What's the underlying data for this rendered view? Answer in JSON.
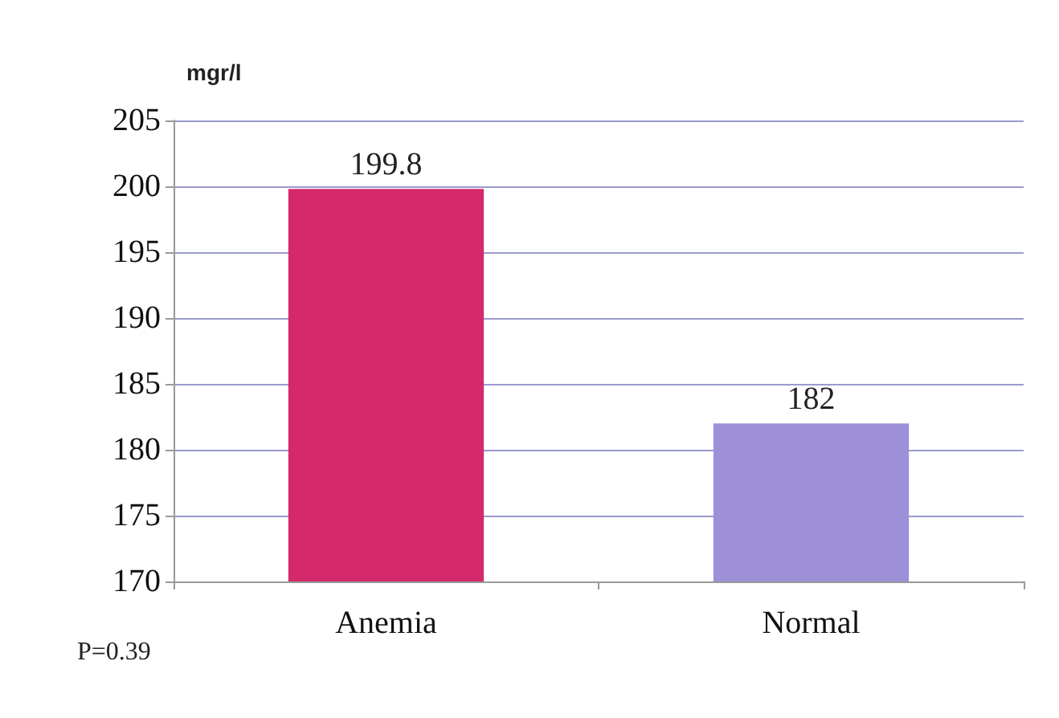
{
  "chart_data": {
    "type": "bar",
    "ylabel": "mgr/l",
    "categories": [
      "Anemia",
      "Normal"
    ],
    "values": [
      199.8,
      182
    ],
    "colors": [
      "#d42a6c",
      "#9d90d8"
    ],
    "ylim": [
      170,
      205
    ],
    "yticks": [
      170,
      175,
      180,
      185,
      190,
      195,
      200,
      205
    ],
    "grid": "y",
    "data_labels": true,
    "annotations": [
      "P=0.39"
    ]
  }
}
